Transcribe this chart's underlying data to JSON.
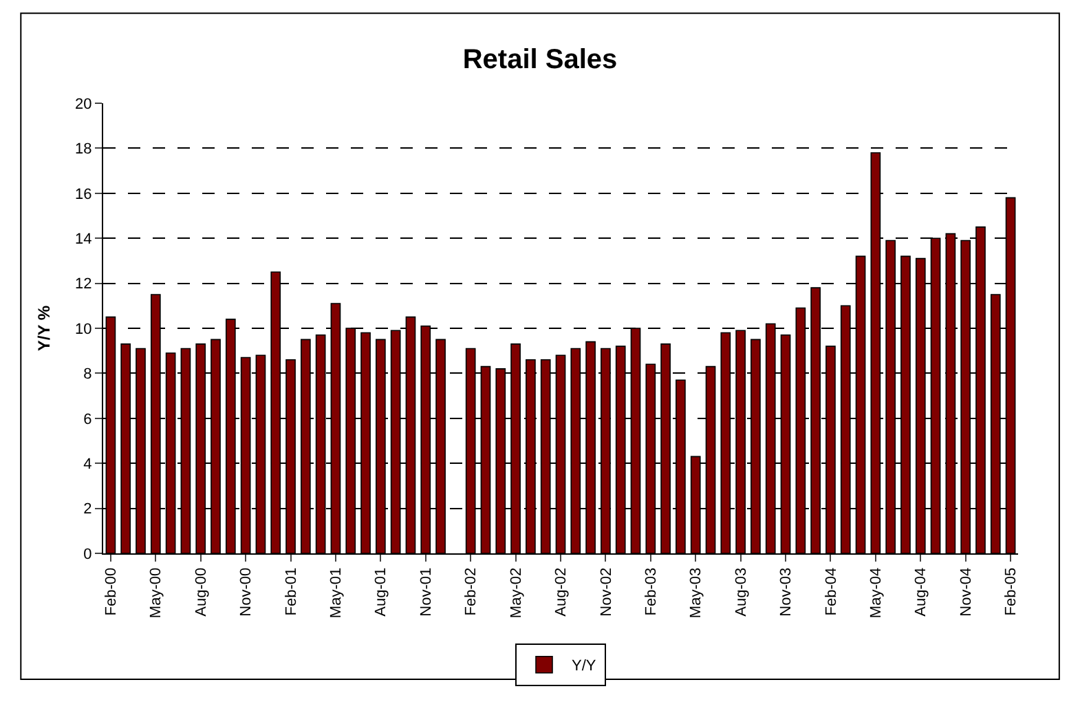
{
  "chart_data": {
    "type": "bar",
    "title": "Retail Sales",
    "ylabel": "Y/Y %",
    "categories": [
      "Feb-00",
      null,
      null,
      "May-00",
      null,
      null,
      "Aug-00",
      null,
      null,
      "Nov-00",
      null,
      null,
      "Feb-01",
      null,
      null,
      "May-01",
      null,
      null,
      "Aug-01",
      null,
      null,
      "Nov-01",
      null,
      null,
      "Feb-02",
      null,
      null,
      "May-02",
      null,
      null,
      "Aug-02",
      null,
      null,
      "Nov-02",
      null,
      null,
      "Feb-03",
      null,
      null,
      "May-03",
      null,
      null,
      "Aug-03",
      null,
      null,
      "Nov-03",
      null,
      null,
      "Feb-04",
      null,
      null,
      "May-04",
      null,
      null,
      "Aug-04",
      null,
      null,
      "Nov-04",
      null,
      null,
      "Feb-05"
    ],
    "series": [
      {
        "name": "Y/Y",
        "color": "#800000",
        "values": [
          10.5,
          9.3,
          9.1,
          11.5,
          8.9,
          9.1,
          9.3,
          9.5,
          10.4,
          8.7,
          8.8,
          12.5,
          8.6,
          9.5,
          9.7,
          11.1,
          10.0,
          9.8,
          9.5,
          9.9,
          10.5,
          10.1,
          9.5,
          null,
          9.1,
          8.3,
          8.2,
          9.3,
          8.6,
          8.6,
          8.8,
          9.1,
          9.4,
          9.1,
          9.2,
          10.0,
          8.4,
          9.3,
          7.7,
          4.3,
          8.3,
          9.8,
          9.9,
          9.5,
          10.2,
          9.7,
          10.9,
          11.8,
          9.2,
          11.0,
          13.2,
          17.8,
          13.9,
          13.2,
          13.1,
          14.0,
          14.2,
          13.9,
          14.5,
          11.5,
          15.8
        ]
      }
    ],
    "ylim": [
      0,
      20
    ],
    "yticks": [
      0,
      2,
      4,
      6,
      8,
      10,
      12,
      14,
      16,
      18,
      20
    ],
    "grid": "y",
    "legend": "bottom"
  }
}
